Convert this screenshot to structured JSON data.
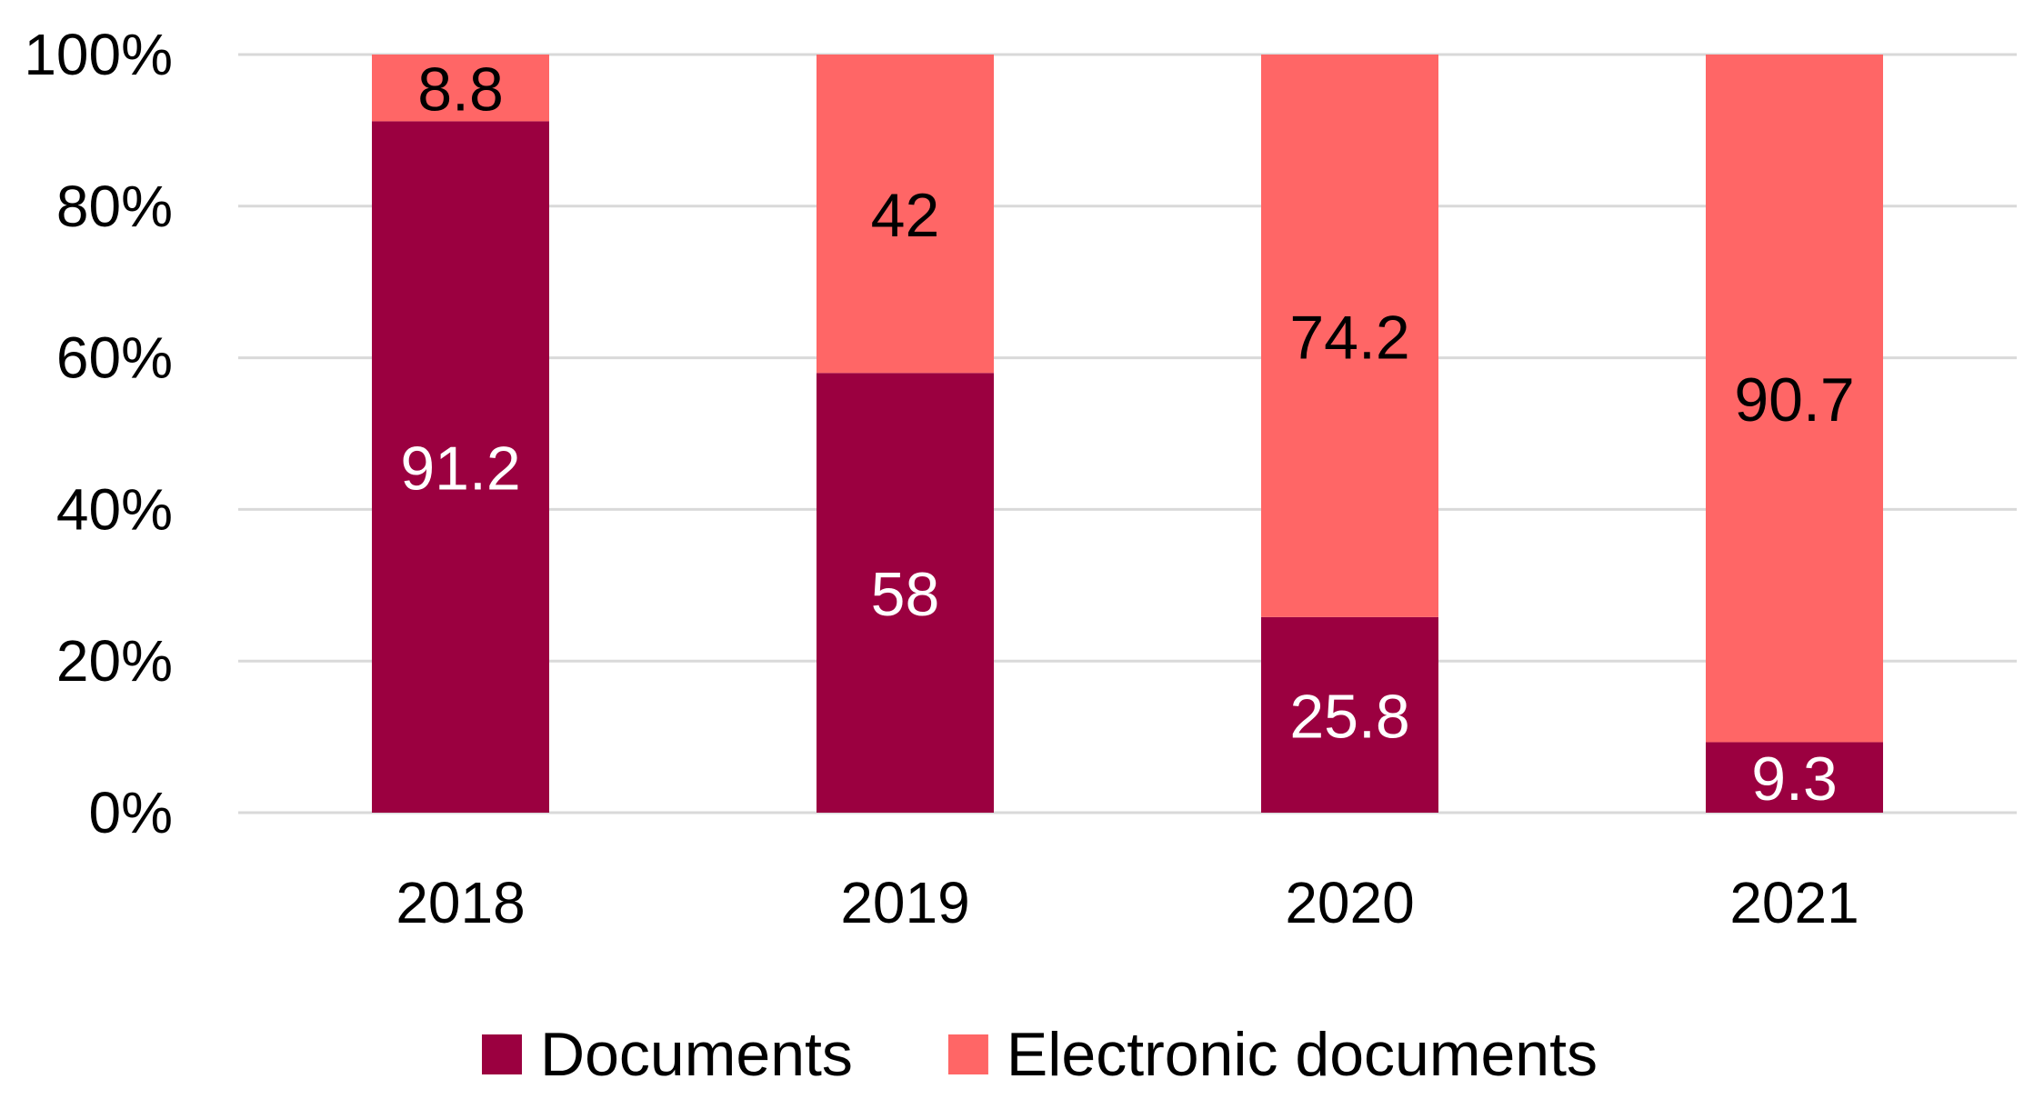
{
  "chart_data": {
    "type": "bar",
    "stacked": true,
    "categories": [
      "2018",
      "2019",
      "2020",
      "2021"
    ],
    "series": [
      {
        "name": "Documents",
        "values": [
          91.2,
          58,
          25.8,
          9.3
        ],
        "labels": [
          "91.2",
          "58",
          "25.8",
          "9.3"
        ],
        "color": "#9b0040",
        "label_color": "#ffffff"
      },
      {
        "name": "Electronic documents",
        "values": [
          8.8,
          42,
          74.2,
          90.7
        ],
        "labels": [
          "8.8",
          "42",
          "74.2",
          "90.7"
        ],
        "color": "#ff6666",
        "label_color": "#000000"
      }
    ],
    "y_ticks": [
      "0%",
      "20%",
      "40%",
      "60%",
      "80%",
      "100%"
    ],
    "ylim": [
      0,
      100
    ],
    "grid": true,
    "legend_position": "bottom",
    "title": "",
    "xlabel": "",
    "ylabel": ""
  }
}
